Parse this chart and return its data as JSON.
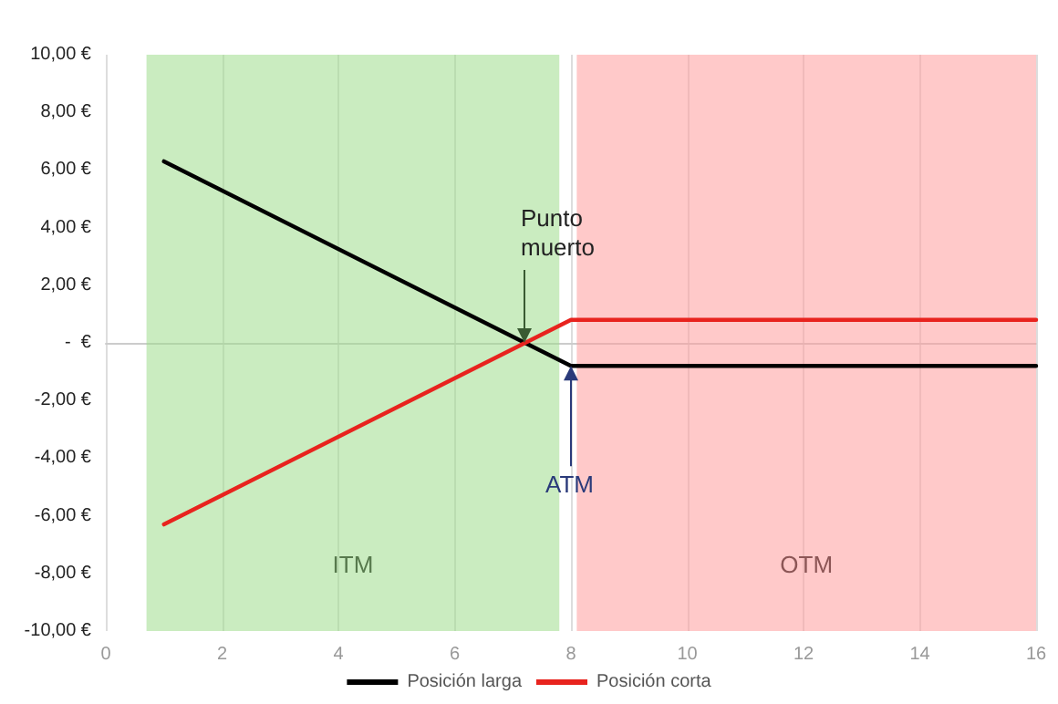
{
  "chart_data": {
    "type": "line",
    "series": [
      {
        "name": "Posición larga",
        "color": "#000000",
        "x": [
          1,
          8,
          16
        ],
        "values": [
          6.3,
          -0.8,
          -0.8
        ]
      },
      {
        "name": "Posición corta",
        "color": "#e8231e",
        "x": [
          1,
          8,
          16
        ],
        "values": [
          -6.3,
          0.8,
          0.8
        ]
      }
    ],
    "xlim": [
      0,
      16
    ],
    "xticks": [
      0,
      2,
      4,
      6,
      8,
      10,
      12,
      14,
      16
    ],
    "ylim": [
      -10,
      10
    ],
    "yticks": [
      {
        "value": -10,
        "label": "-10,00 €"
      },
      {
        "value": -8,
        "label": "-8,00 €"
      },
      {
        "value": -6,
        "label": "-6,00 €"
      },
      {
        "value": -4,
        "label": "-4,00 €"
      },
      {
        "value": -2,
        "label": "-2,00 €"
      },
      {
        "value": 0,
        "label": " -  €"
      },
      {
        "value": 2,
        "label": "2,00 €"
      },
      {
        "value": 4,
        "label": "4,00 €"
      },
      {
        "value": 6,
        "label": "6,00 €"
      },
      {
        "value": 8,
        "label": "8,00 €"
      },
      {
        "value": 10,
        "label": "10,00 €"
      }
    ],
    "bands": [
      {
        "axis": "x",
        "from": 0.7,
        "to": 7.8,
        "label": "ITM",
        "color": "#9fdc8c"
      },
      {
        "axis": "x",
        "from": 8.1,
        "to": 16.1,
        "label": "OTM",
        "color": "#ff9c9c"
      }
    ],
    "annotations": [
      {
        "text": "Punto muerto",
        "x": 7.2,
        "y": 0
      },
      {
        "text": "ATM",
        "x": 8,
        "y": -0.8
      }
    ],
    "grid": "x",
    "legend": "bottom",
    "marker": "none",
    "line_style": "solid"
  }
}
